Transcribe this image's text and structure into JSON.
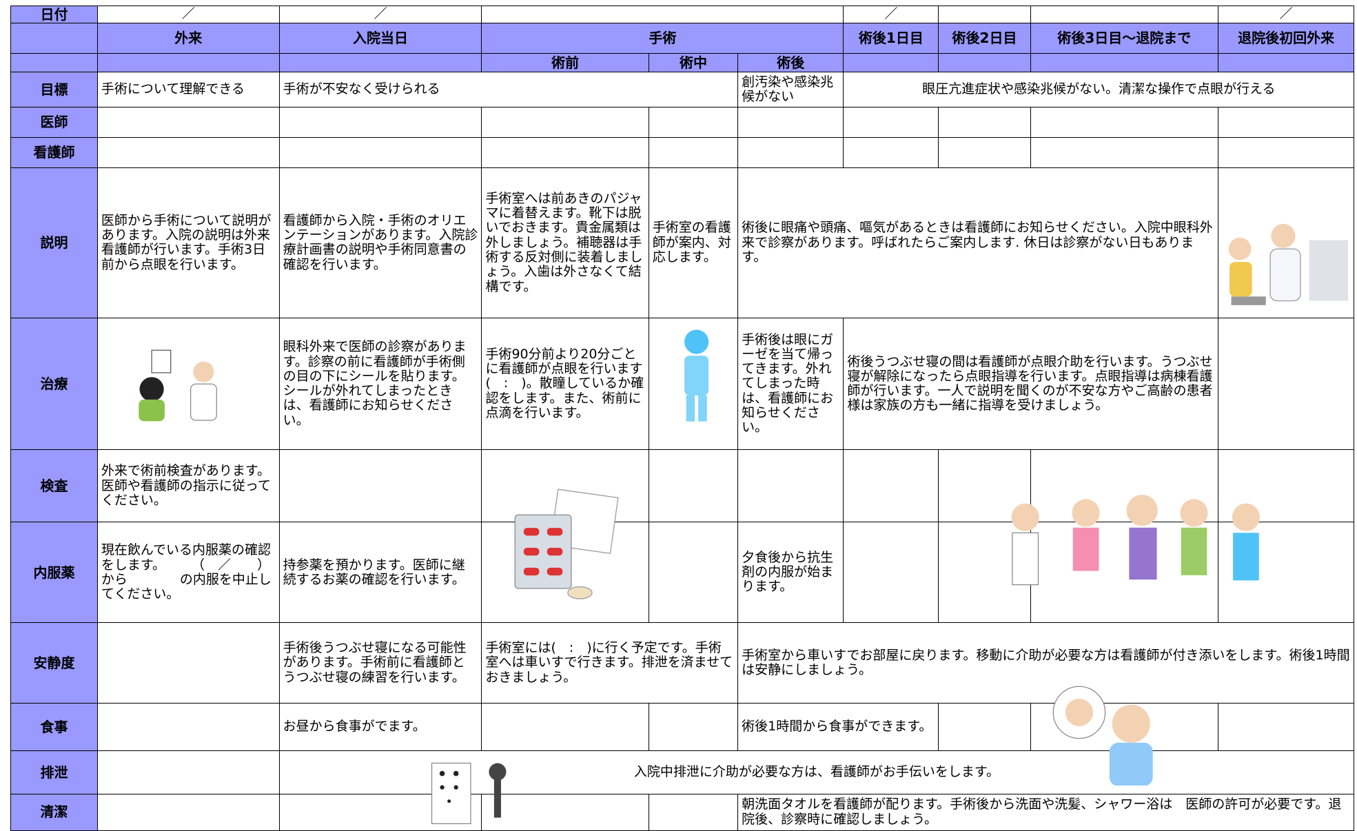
{
  "header": {
    "date_label": "日付",
    "date_marks": [
      "／",
      "／",
      "／",
      "／"
    ],
    "phases": [
      "外来",
      "入院当日",
      "手術",
      "術後1日目",
      "術後2日目",
      "術後3日目～退院まで",
      "退院後初回外来"
    ],
    "surgery_stages": [
      "術前",
      "術中",
      "術後"
    ]
  },
  "rows": [
    {
      "label": "目標",
      "cells": [
        "手術について理解できる",
        "手術が不安なく受けられる",
        "創汚染や感染兆候がない",
        "眼圧亢進症状や感染兆候がない。清潔な操作で点眼が行える"
      ]
    },
    {
      "label": "医師"
    },
    {
      "label": "看護師"
    },
    {
      "label": "説明",
      "cells": [
        "医師から手術について説明があります。入院の説明は外来看護師が行います。手術3日前から点眼を行います。",
        "看護師から入院・手術のオリエンテーションがあります。入院診療計画書の説明や手術同意書の確認を行います。",
        "手術室へは前あきのパジャマに着替えます。靴下は脱いでおきます。貴金属類は外しましょう。補聴器は手術する反対側に装着しましょう。入歯は外さなくて結構です。",
        "手術室の看護師が案内、対応します。",
        "術後に眼痛や頭痛、嘔気があるときは看護師にお知らせください。入院中眼科外来で診察があります。呼ばれたらご案内します. 休日は診察がない日もあります。"
      ]
    },
    {
      "label": "治療",
      "cells": [
        "眼科外来で医師の診察があります。診察の前に看護師が手術側の目の下にシールを貼ります。シールが外れてしまったときは、看護師にお知らせください。",
        "手術90分前より20分ごとに看護師が点眼を行います(　:　)。散瞳しているか確認をします。また、術前に点滴を行います。",
        "手術後は眼にガーゼを当て帰ってきます。外れてしまった時は、看護師にお知らせください。",
        "術後うつぶせ寝の間は看護師が点眼介助を行います。うつぶせ寝が解除になったら点眼指導を行います。点眼指導は病棟看護師が行います。一人で説明を聞くのが不安な方やご高齢の患者様は家族の方も一緒に指導を受けましょう。"
      ]
    },
    {
      "label": "検査",
      "cells": [
        "外来で術前検査があります。医師や看護師の指示に従ってください。"
      ]
    },
    {
      "label": "内服薬",
      "cells": [
        "現在飲んでいる内服薬の確認をします。　　　（　／　　）から　　　　の内服を中止してください。",
        "持参薬を預かります。医師に継続するお薬の確認を行います。",
        "夕食後から抗生剤の内服が始まります。"
      ]
    },
    {
      "label": "安静度",
      "cells": [
        "手術後うつぶせ寝になる可能性があります。手術前に看護師とうつぶせ寝の練習を行います。",
        "手術室には(　:　)に行く予定です。手術室へは車いすで行きます。排泄を済ませておきましょう。",
        "手術室から車いすでお部屋に戻ります。移動に介助が必要な方は看護師が付き添いをします。術後1時間は安静にしましょう。"
      ]
    },
    {
      "label": "食事",
      "cells": [
        "お昼から食事がでます。",
        "術後1時間から食事ができます。"
      ]
    },
    {
      "label": "排泄",
      "cells": [
        "入院中排泄に介助が必要な方は、看護師がお手伝いをします。"
      ]
    },
    {
      "label": "清潔",
      "cells": [
        "朝洗面タオルを看護師が配ります。手術後から洗面や洗髪、シャワー浴は　医師の許可が必要です。退院後、診察時に確認しましょう。"
      ]
    }
  ]
}
